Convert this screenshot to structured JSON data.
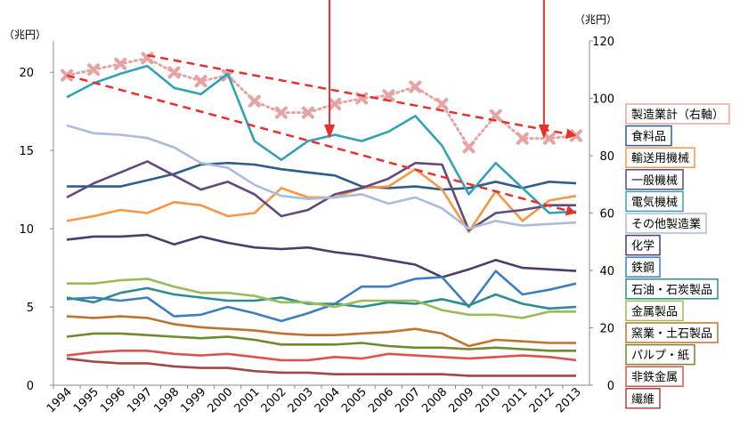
{
  "chart_data": {
    "type": "line",
    "left_axis": {
      "unit_label": "（兆円）",
      "ylim": [
        0,
        22
      ],
      "ticks": [
        "0",
        "5",
        "10",
        "15",
        "20"
      ]
    },
    "right_axis": {
      "unit_label": "（兆円）",
      "ylim": [
        0,
        120
      ],
      "ticks": [
        "0",
        "20",
        "40",
        "60",
        "80",
        "100",
        "120"
      ]
    },
    "categories": [
      "1994",
      "1995",
      "1996",
      "1997",
      "1998",
      "1999",
      "2000",
      "2001",
      "2002",
      "2003",
      "2004",
      "2005",
      "2006",
      "2007",
      "2008",
      "2009",
      "2010",
      "2011",
      "2012",
      "2013"
    ],
    "series": [
      {
        "name": "製造業計（右軸）",
        "axis": "right",
        "color": "#e6a3a3",
        "style": "dotted-x",
        "values": [
          108,
          110,
          112,
          114,
          109,
          106,
          108,
          99,
          95,
          95,
          98,
          100,
          101,
          104,
          98,
          83,
          94,
          86,
          86,
          87
        ]
      },
      {
        "name": "食料品",
        "color": "#2e5d8a",
        "values": [
          12.7,
          12.7,
          12.7,
          13.1,
          13.5,
          14.1,
          14.2,
          14.1,
          13.8,
          13.6,
          13.4,
          12.7,
          12.6,
          12.7,
          12.5,
          12.6,
          13.0,
          12.6,
          13.0,
          12.9
        ]
      },
      {
        "name": "輸送用機械",
        "color": "#f79646",
        "values": [
          10.5,
          10.8,
          11.2,
          11.0,
          11.7,
          11.5,
          10.8,
          11.0,
          12.6,
          12.0,
          12.0,
          12.6,
          12.7,
          13.8,
          12.5,
          9.8,
          12.4,
          10.5,
          11.8,
          12.1
        ]
      },
      {
        "name": "一般機械",
        "color": "#604a7b",
        "values": [
          12.0,
          12.9,
          13.6,
          14.3,
          13.4,
          12.5,
          13.0,
          12.2,
          10.8,
          11.2,
          12.2,
          12.6,
          13.2,
          14.2,
          14.1,
          9.9,
          11.0,
          11.2,
          11.5,
          11.5
        ]
      },
      {
        "name": "電気機械",
        "color": "#31a3b4",
        "values": [
          18.4,
          19.3,
          19.9,
          20.4,
          19.0,
          18.6,
          19.9,
          15.6,
          14.4,
          15.6,
          16.0,
          15.6,
          16.2,
          17.2,
          15.3,
          12.2,
          14.2,
          12.6,
          11.0,
          11.1
        ]
      },
      {
        "name": "その他製造業",
        "color": "#a9bcdc",
        "values": [
          16.6,
          16.1,
          16.0,
          15.8,
          15.2,
          14.2,
          13.9,
          12.8,
          12.1,
          11.9,
          12.0,
          12.2,
          11.6,
          12.0,
          11.3,
          10.0,
          10.5,
          10.2,
          10.3,
          10.4
        ]
      },
      {
        "name": "化学",
        "color": "#4a3c6e",
        "values": [
          9.3,
          9.5,
          9.5,
          9.6,
          9.0,
          9.5,
          9.1,
          8.8,
          8.7,
          8.8,
          8.5,
          8.3,
          8.0,
          7.7,
          6.9,
          7.4,
          8.0,
          7.5,
          7.4,
          7.3
        ]
      },
      {
        "name": "鉄鋼",
        "color": "#3f7dc1",
        "values": [
          5.5,
          5.6,
          5.4,
          5.6,
          4.4,
          4.5,
          5.0,
          4.6,
          4.1,
          4.6,
          5.2,
          6.3,
          6.3,
          6.8,
          6.9,
          5.0,
          7.3,
          5.8,
          6.1,
          6.5
        ]
      },
      {
        "name": "石油・石炭製品",
        "color": "#2c8d8f",
        "values": [
          5.6,
          5.3,
          5.9,
          6.2,
          5.8,
          5.6,
          5.4,
          5.4,
          5.6,
          5.2,
          5.2,
          5.0,
          5.3,
          5.2,
          5.5,
          5.1,
          5.8,
          5.2,
          4.9,
          5.0
        ]
      },
      {
        "name": "金属製品",
        "color": "#9bbb59",
        "values": [
          6.5,
          6.5,
          6.7,
          6.8,
          6.3,
          5.9,
          5.9,
          5.7,
          5.3,
          5.3,
          5.0,
          5.4,
          5.4,
          5.4,
          4.8,
          4.5,
          4.5,
          4.3,
          4.7,
          4.7
        ]
      },
      {
        "name": "窯業・土石製品",
        "color": "#c0722f",
        "values": [
          4.4,
          4.3,
          4.4,
          4.3,
          3.9,
          3.7,
          3.6,
          3.5,
          3.3,
          3.2,
          3.2,
          3.3,
          3.4,
          3.6,
          3.3,
          2.5,
          2.9,
          2.8,
          2.7,
          2.7
        ]
      },
      {
        "name": "パルプ・紙",
        "color": "#6f8a2e",
        "values": [
          3.1,
          3.3,
          3.3,
          3.2,
          3.1,
          3.0,
          3.1,
          2.9,
          2.6,
          2.6,
          2.6,
          2.7,
          2.5,
          2.4,
          2.4,
          2.3,
          2.4,
          2.3,
          2.2,
          2.2
        ]
      },
      {
        "name": "非鉄金属",
        "color": "#d9534f",
        "values": [
          1.9,
          2.1,
          2.2,
          2.2,
          2.0,
          1.9,
          2.0,
          1.8,
          1.6,
          1.6,
          1.8,
          1.7,
          2.0,
          1.9,
          1.8,
          1.7,
          1.8,
          1.9,
          1.8,
          1.6
        ]
      },
      {
        "name": "繊維",
        "color": "#a34747",
        "values": [
          1.7,
          1.5,
          1.4,
          1.4,
          1.2,
          1.1,
          1.1,
          0.9,
          0.8,
          0.8,
          0.7,
          0.7,
          0.7,
          0.7,
          0.7,
          0.6,
          0.6,
          0.6,
          0.6,
          0.6
        ]
      }
    ],
    "annotations": {
      "trend_lines_color": "#e8302b",
      "trend_lines": [
        {
          "axis": "right",
          "from": [
            "1997",
            115
          ],
          "to": [
            "2013",
            87
          ]
        },
        {
          "axis": "left",
          "from": [
            "1994",
            19.8
          ],
          "to": [
            "2013",
            11.0
          ]
        }
      ],
      "arrows_color": "#e8302b",
      "arrows": [
        "2004",
        "2012"
      ]
    },
    "legend": {
      "placement": "right"
    },
    "grid": false
  }
}
